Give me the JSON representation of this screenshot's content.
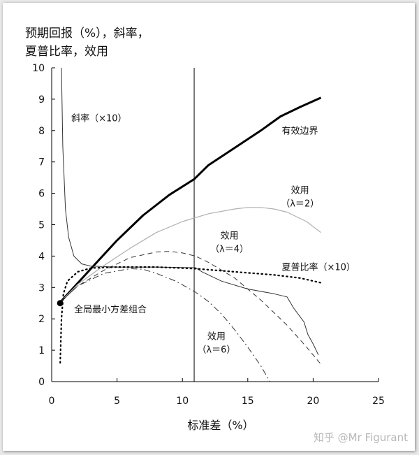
{
  "chart_data": {
    "type": "line",
    "title_lines": [
      "预期回报（%），斜率，",
      "夏普比率，效用"
    ],
    "xlabel": "标准差（%）",
    "ylabel": "",
    "xlim": [
      0,
      25
    ],
    "ylim": [
      0,
      10
    ],
    "xticks": [
      0,
      5,
      10,
      15,
      20,
      25
    ],
    "yticks": [
      0,
      1,
      2,
      3,
      4,
      5,
      6,
      7,
      8,
      9,
      10
    ],
    "grid": false,
    "legend": "none",
    "vline_x": 10.9,
    "series": [
      {
        "name": "有效边界",
        "style": "thick-solid",
        "color": "#000000",
        "points": [
          [
            0.7,
            2.55
          ],
          [
            3,
            3.6
          ],
          [
            5,
            4.5
          ],
          [
            7,
            5.3
          ],
          [
            9,
            5.95
          ],
          [
            10.9,
            6.45
          ],
          [
            12,
            6.9
          ],
          [
            14,
            7.45
          ],
          [
            16,
            8.0
          ],
          [
            17.5,
            8.45
          ],
          [
            19,
            8.75
          ],
          [
            20.6,
            9.05
          ]
        ]
      },
      {
        "name": "斜率（×10）",
        "style": "thin-solid",
        "color": "#333333",
        "points": [
          [
            0.75,
            10
          ],
          [
            0.85,
            7.5
          ],
          [
            1.05,
            5.5
          ],
          [
            1.3,
            4.6
          ],
          [
            1.7,
            4.0
          ],
          [
            2.3,
            3.75
          ],
          [
            3,
            3.68
          ],
          [
            5,
            3.65
          ],
          [
            8,
            3.65
          ],
          [
            11,
            3.63
          ],
          [
            11.5,
            3.5
          ],
          [
            13,
            3.2
          ],
          [
            15,
            2.95
          ],
          [
            17,
            2.8
          ],
          [
            18,
            2.7
          ],
          [
            18.5,
            2.35
          ],
          [
            19.3,
            1.9
          ],
          [
            19.6,
            1.5
          ],
          [
            20,
            1.2
          ],
          [
            20.4,
            0.85
          ]
        ]
      },
      {
        "name": "效用（λ＝2）",
        "style": "thin-solid-grey",
        "color": "#b0b0b0",
        "points": [
          [
            0.7,
            2.55
          ],
          [
            2,
            3.1
          ],
          [
            4,
            3.7
          ],
          [
            6,
            4.25
          ],
          [
            8,
            4.75
          ],
          [
            10,
            5.1
          ],
          [
            12,
            5.35
          ],
          [
            14,
            5.5
          ],
          [
            15,
            5.55
          ],
          [
            16,
            5.55
          ],
          [
            17,
            5.5
          ],
          [
            18,
            5.4
          ],
          [
            19.5,
            5.1
          ],
          [
            20.6,
            4.75
          ]
        ]
      },
      {
        "name": "效用（λ＝4）",
        "style": "dashed",
        "color": "#333333",
        "points": [
          [
            0.7,
            2.55
          ],
          [
            2,
            3.05
          ],
          [
            4,
            3.55
          ],
          [
            6,
            3.95
          ],
          [
            8,
            4.13
          ],
          [
            9,
            4.15
          ],
          [
            10,
            4.1
          ],
          [
            11,
            4.0
          ],
          [
            12,
            3.8
          ],
          [
            14,
            3.3
          ],
          [
            16,
            2.6
          ],
          [
            18,
            1.8
          ],
          [
            19.5,
            1.1
          ],
          [
            20.6,
            0.55
          ]
        ]
      },
      {
        "name": "夏普比率（×10）",
        "style": "dotted",
        "color": "#000000",
        "points": [
          [
            0.65,
            0.6
          ],
          [
            0.75,
            2.0
          ],
          [
            0.9,
            2.8
          ],
          [
            1.2,
            3.2
          ],
          [
            2,
            3.5
          ],
          [
            3,
            3.62
          ],
          [
            5,
            3.65
          ],
          [
            8,
            3.65
          ],
          [
            11,
            3.6
          ],
          [
            14,
            3.5
          ],
          [
            17,
            3.4
          ],
          [
            19,
            3.3
          ],
          [
            20.6,
            3.15
          ]
        ]
      },
      {
        "name": "效用（λ＝6）",
        "style": "dash-dot",
        "color": "#333333",
        "points": [
          [
            0.7,
            2.55
          ],
          [
            2,
            3.05
          ],
          [
            4,
            3.45
          ],
          [
            6,
            3.6
          ],
          [
            7,
            3.58
          ],
          [
            8,
            3.45
          ],
          [
            9.5,
            3.2
          ],
          [
            11,
            2.85
          ],
          [
            12,
            2.55
          ],
          [
            13,
            2.15
          ],
          [
            14,
            1.65
          ],
          [
            15,
            1.1
          ],
          [
            16,
            0.5
          ],
          [
            16.7,
            0
          ]
        ]
      }
    ],
    "marker": {
      "point": [
        0.65,
        2.5
      ],
      "label": "全局最小方差组合"
    },
    "annotations": [
      {
        "lines": [
          "斜率（×10）"
        ],
        "at": [
          1.5,
          8.3
        ]
      },
      {
        "lines": [
          "有效边界"
        ],
        "at": [
          17.6,
          7.9
        ]
      },
      {
        "lines": [
          "效用",
          "（λ＝2）"
        ],
        "at": [
          19,
          6
        ]
      },
      {
        "lines": [
          "效用",
          "（λ＝4）"
        ],
        "at": [
          13.6,
          4.55
        ]
      },
      {
        "lines": [
          "夏普比率（×10）"
        ],
        "at": [
          17.6,
          3.55
        ]
      },
      {
        "lines": [
          "效用",
          "（λ＝6）"
        ],
        "at": [
          12.6,
          1.35
        ]
      }
    ]
  },
  "watermark": "知乎 @Mr Figurant"
}
